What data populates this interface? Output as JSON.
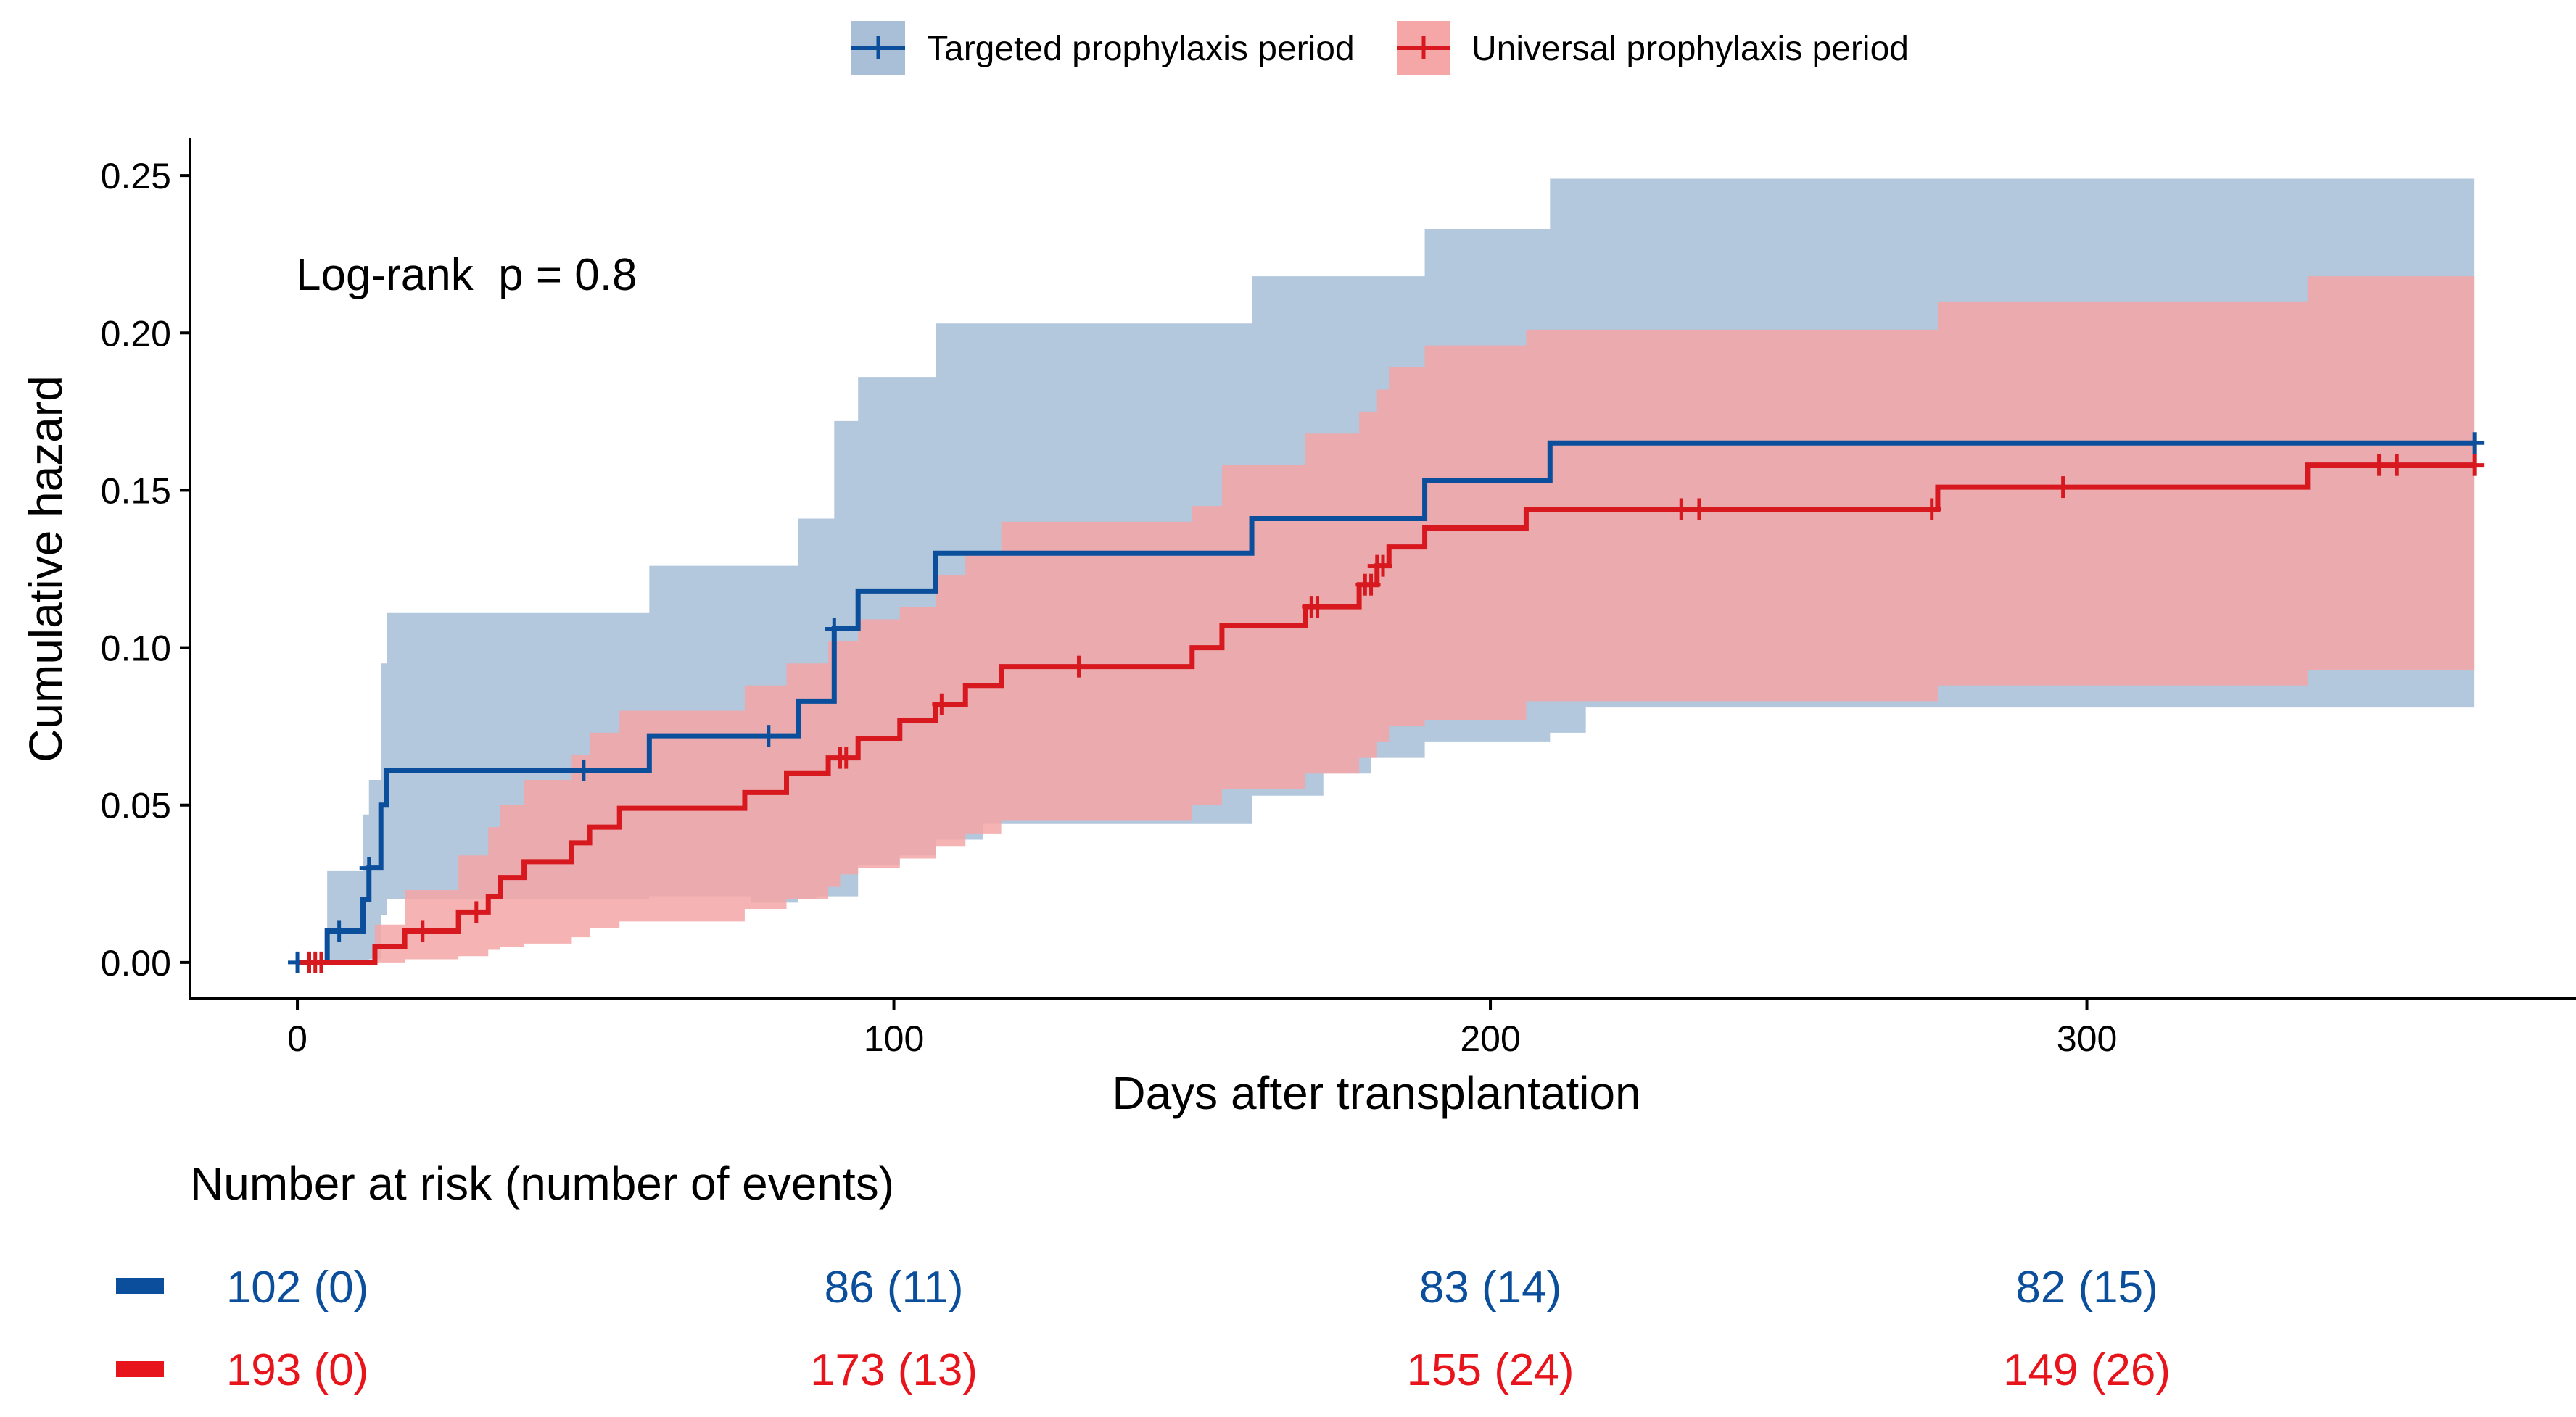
{
  "chart_data": {
    "type": "line",
    "subtype": "cumulative-hazard-step",
    "xlabel": "Days after transplantation",
    "ylabel": "Cumulative hazard",
    "xlim": [
      -18,
      382
    ],
    "ylim": [
      -0.012,
      0.262
    ],
    "x_ticks": [
      0,
      100,
      200,
      300
    ],
    "x_tick_labels": [
      "0",
      "100",
      "200",
      "300"
    ],
    "y_ticks": [
      0,
      0.05,
      0.1,
      0.15,
      0.2,
      0.25
    ],
    "y_tick_labels": [
      "0.00",
      "0.05",
      "0.10",
      "0.15",
      "0.20",
      "0.25"
    ],
    "legend_position": "top",
    "annotation": "Log-rank  p = 0.8",
    "series": [
      {
        "name": "Targeted prophylaxis period",
        "line_color": "#0B4F9C",
        "band_color": "#A9BFD8",
        "band_opacity": 0.88,
        "steps": [
          [
            0,
            0
          ],
          [
            5,
            0.01
          ],
          [
            11,
            0.02
          ],
          [
            12,
            0.03
          ],
          [
            14,
            0.05
          ],
          [
            15,
            0.061
          ],
          [
            59,
            0.072
          ],
          [
            84,
            0.083
          ],
          [
            90,
            0.106
          ],
          [
            94,
            0.118
          ],
          [
            107,
            0.13
          ],
          [
            160,
            0.141
          ],
          [
            189,
            0.153
          ],
          [
            210,
            0.165
          ],
          [
            365,
            0.165
          ]
        ],
        "lower": [
          [
            0,
            0
          ],
          [
            5,
            0
          ],
          [
            11,
            0
          ],
          [
            12,
            0.001
          ],
          [
            14,
            0.015
          ],
          [
            15,
            0.02
          ],
          [
            32,
            0.02
          ],
          [
            48,
            0.02
          ],
          [
            59,
            0.021
          ],
          [
            76,
            0.019
          ],
          [
            84,
            0.02
          ],
          [
            87,
            0.021
          ],
          [
            94,
            0.031
          ],
          [
            101,
            0.034
          ],
          [
            107,
            0.039
          ],
          [
            115,
            0.044
          ],
          [
            160,
            0.053
          ],
          [
            172,
            0.06
          ],
          [
            180,
            0.065
          ],
          [
            189,
            0.07
          ],
          [
            210,
            0.073
          ],
          [
            216,
            0.081
          ],
          [
            365,
            0.081
          ]
        ],
        "upper": [
          [
            0,
            0
          ],
          [
            5,
            0.029
          ],
          [
            11,
            0.047
          ],
          [
            12,
            0.058
          ],
          [
            14,
            0.095
          ],
          [
            15,
            0.111
          ],
          [
            59,
            0.126
          ],
          [
            84,
            0.141
          ],
          [
            90,
            0.172
          ],
          [
            94,
            0.186
          ],
          [
            107,
            0.203
          ],
          [
            160,
            0.218
          ],
          [
            189,
            0.233
          ],
          [
            210,
            0.249
          ],
          [
            365,
            0.249
          ]
        ],
        "censor_x": [
          0,
          7,
          12,
          48,
          79,
          90,
          365
        ],
        "risk_table": [
          "102 (0)",
          "86 (11)",
          "83 (14)",
          "82 (15)"
        ]
      },
      {
        "name": "Universal prophylaxis period",
        "line_color": "#D7181F",
        "band_color": "#F5A6A6",
        "band_opacity": 0.85,
        "steps": [
          [
            0,
            0
          ],
          [
            13,
            0.005
          ],
          [
            18,
            0.01
          ],
          [
            27,
            0.016
          ],
          [
            32,
            0.021
          ],
          [
            34,
            0.027
          ],
          [
            38,
            0.032
          ],
          [
            46,
            0.038
          ],
          [
            49,
            0.043
          ],
          [
            54,
            0.049
          ],
          [
            75,
            0.054
          ],
          [
            82,
            0.06
          ],
          [
            89,
            0.065
          ],
          [
            94,
            0.071
          ],
          [
            101,
            0.077
          ],
          [
            107,
            0.082
          ],
          [
            112,
            0.088
          ],
          [
            118,
            0.094
          ],
          [
            150,
            0.1
          ],
          [
            155,
            0.107
          ],
          [
            169,
            0.113
          ],
          [
            178,
            0.12
          ],
          [
            181,
            0.126
          ],
          [
            183,
            0.132
          ],
          [
            189,
            0.138
          ],
          [
            206,
            0.144
          ],
          [
            275,
            0.151
          ],
          [
            337,
            0.158
          ],
          [
            365,
            0.158
          ]
        ],
        "lower": [
          [
            0,
            0
          ],
          [
            13,
            0
          ],
          [
            18,
            0.001
          ],
          [
            27,
            0.002
          ],
          [
            32,
            0.004
          ],
          [
            34,
            0.005
          ],
          [
            38,
            0.006
          ],
          [
            46,
            0.008
          ],
          [
            49,
            0.011
          ],
          [
            54,
            0.013
          ],
          [
            75,
            0.017
          ],
          [
            82,
            0.02
          ],
          [
            89,
            0.024
          ],
          [
            91,
            0.028
          ],
          [
            94,
            0.03
          ],
          [
            101,
            0.033
          ],
          [
            107,
            0.037
          ],
          [
            112,
            0.041
          ],
          [
            118,
            0.045
          ],
          [
            150,
            0.05
          ],
          [
            155,
            0.055
          ],
          [
            169,
            0.06
          ],
          [
            178,
            0.065
          ],
          [
            181,
            0.07
          ],
          [
            183,
            0.075
          ],
          [
            189,
            0.077
          ],
          [
            206,
            0.083
          ],
          [
            275,
            0.088
          ],
          [
            337,
            0.093
          ],
          [
            365,
            0.093
          ]
        ],
        "upper": [
          [
            0,
            0
          ],
          [
            13,
            0.012
          ],
          [
            18,
            0.023
          ],
          [
            27,
            0.034
          ],
          [
            32,
            0.043
          ],
          [
            34,
            0.05
          ],
          [
            38,
            0.058
          ],
          [
            46,
            0.066
          ],
          [
            49,
            0.073
          ],
          [
            54,
            0.08
          ],
          [
            75,
            0.088
          ],
          [
            82,
            0.095
          ],
          [
            89,
            0.102
          ],
          [
            94,
            0.109
          ],
          [
            101,
            0.113
          ],
          [
            107,
            0.123
          ],
          [
            112,
            0.13
          ],
          [
            118,
            0.14
          ],
          [
            150,
            0.145
          ],
          [
            155,
            0.158
          ],
          [
            169,
            0.168
          ],
          [
            178,
            0.175
          ],
          [
            181,
            0.182
          ],
          [
            183,
            0.189
          ],
          [
            189,
            0.196
          ],
          [
            206,
            0.201
          ],
          [
            275,
            0.21
          ],
          [
            337,
            0.218
          ],
          [
            365,
            0.218
          ]
        ],
        "censor_x": [
          2,
          3,
          4,
          21,
          30,
          91,
          92,
          108,
          131,
          170,
          171,
          179,
          180,
          181,
          182,
          232,
          235,
          274,
          296,
          349,
          352,
          365
        ],
        "risk_table": [
          "193 (0)",
          "173 (13)",
          "155 (24)",
          "149 (26)"
        ]
      }
    ],
    "risk_table_title": "Number at risk (number of events)",
    "risk_table_x": [
      0,
      100,
      200,
      300
    ]
  }
}
